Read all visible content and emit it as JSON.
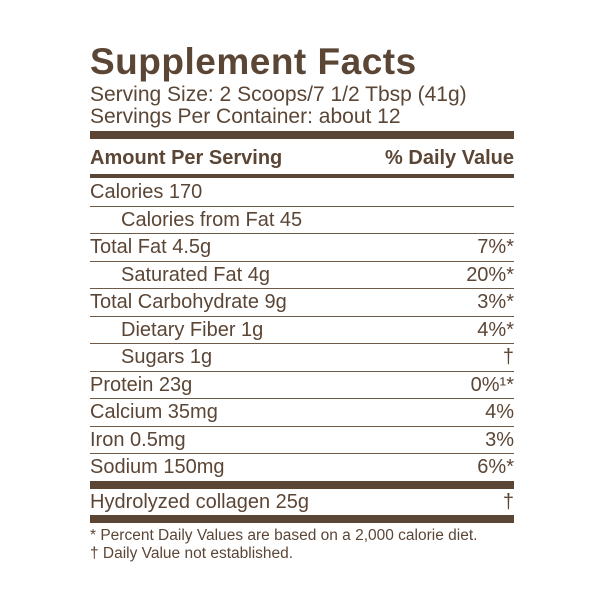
{
  "label": {
    "title": "Supplement Facts",
    "serving_size": "Serving Size: 2 Scoops/7 1/2 Tbsp (41g)",
    "servings_per_container": "Servings Per Container: about 12",
    "columns": {
      "left": "Amount Per Serving",
      "right": "% Daily Value"
    },
    "rows": [
      {
        "label": "Calories 170",
        "value": "",
        "indent": false,
        "separator": "thin"
      },
      {
        "label": "Calories from Fat 45",
        "value": "",
        "indent": true,
        "separator": "thin"
      },
      {
        "label": "Total Fat 4.5g",
        "value": "7%*",
        "indent": false,
        "separator": "thin"
      },
      {
        "label": "Saturated Fat 4g",
        "value": "20%*",
        "indent": true,
        "separator": "thin"
      },
      {
        "label": "Total Carbohydrate 9g",
        "value": "3%*",
        "indent": false,
        "separator": "thin"
      },
      {
        "label": "Dietary Fiber 1g",
        "value": "4%*",
        "indent": true,
        "separator": "thin"
      },
      {
        "label": "Sugars 1g",
        "value": "†",
        "indent": true,
        "separator": "thin"
      },
      {
        "label": "Protein 23g",
        "value": "0%¹*",
        "indent": false,
        "separator": "thin"
      },
      {
        "label": "Calcium 35mg",
        "value": "4%",
        "indent": false,
        "separator": "thin"
      },
      {
        "label": "Iron 0.5mg",
        "value": "3%",
        "indent": false,
        "separator": "thin"
      },
      {
        "label": "Sodium 150mg",
        "value": "6%*",
        "indent": false,
        "separator": "thick"
      },
      {
        "label": "Hydrolyzed collagen 25g",
        "value": "†",
        "indent": false,
        "separator": "thick"
      }
    ],
    "footnotes": [
      "* Percent Daily Values are based on a 2,000 calorie diet.",
      "† Daily Value not established."
    ],
    "colors": {
      "brown": "#5b4636",
      "thin_rule": "#6e5a49",
      "background": "#ffffff"
    }
  }
}
